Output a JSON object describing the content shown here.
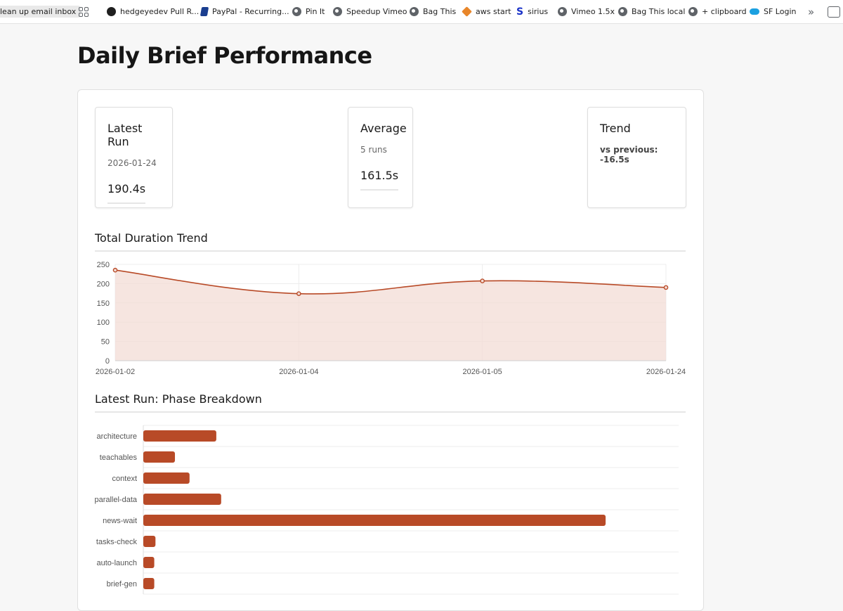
{
  "bookmarks": [
    {
      "label": "lean up email inbox",
      "icon": "none"
    },
    {
      "label": "",
      "icon": "apps-grid-icon"
    },
    {
      "label": "hedgeyedev Pull R...",
      "icon": "github-icon"
    },
    {
      "label": "PayPal - Recurring...",
      "icon": "paypal-icon"
    },
    {
      "label": "Pin It",
      "icon": "globe-icon"
    },
    {
      "label": "Speedup Vimeo",
      "icon": "globe-icon"
    },
    {
      "label": "Bag This",
      "icon": "globe-icon"
    },
    {
      "label": "aws start",
      "icon": "aws-icon"
    },
    {
      "label": "sirius",
      "icon": "sirius-icon"
    },
    {
      "label": "Vimeo 1.5x",
      "icon": "globe-icon"
    },
    {
      "label": "Bag This local",
      "icon": "globe-icon"
    },
    {
      "label": "+ clipboard",
      "icon": "globe-icon"
    },
    {
      "label": "SF Login",
      "icon": "salesforce-icon"
    }
  ],
  "bookmarks_more_glyph": "»",
  "page": {
    "title": "Daily Brief Performance"
  },
  "cards": {
    "latest": {
      "title": "Latest Run",
      "sub": "2026-01-24",
      "value": "190.4s"
    },
    "average": {
      "title": "Average",
      "sub": "5 runs",
      "value": "161.5s"
    },
    "trend": {
      "title": "Trend",
      "sub": "vs previous: -16.5s"
    }
  },
  "sections": {
    "duration": "Total Duration Trend",
    "phases": "Latest Run: Phase Breakdown"
  },
  "colors": {
    "accent": "#b84a27",
    "fill": "#f3dcd5",
    "grid": "#ececec"
  },
  "chart_data": [
    {
      "type": "area",
      "title": "Total Duration Trend",
      "x": [
        "2026-01-02",
        "2026-01-04",
        "2026-01-05",
        "2026-01-24"
      ],
      "values": [
        235,
        174,
        207,
        190
      ],
      "ylim": [
        0,
        250
      ],
      "yticks": [
        0,
        50,
        100,
        150,
        200,
        250
      ],
      "grid": true
    },
    {
      "type": "bar",
      "orientation": "horizontal",
      "title": "Latest Run: Phase Breakdown",
      "categories": [
        "architecture",
        "teachables",
        "context",
        "parallel-data",
        "news-wait",
        "tasks-check",
        "auto-launch",
        "brief-gen"
      ],
      "values": [
        30,
        13,
        19,
        32,
        190,
        5,
        4.5,
        4.5
      ],
      "xlim": [
        0,
        220
      ],
      "grid": true
    }
  ]
}
